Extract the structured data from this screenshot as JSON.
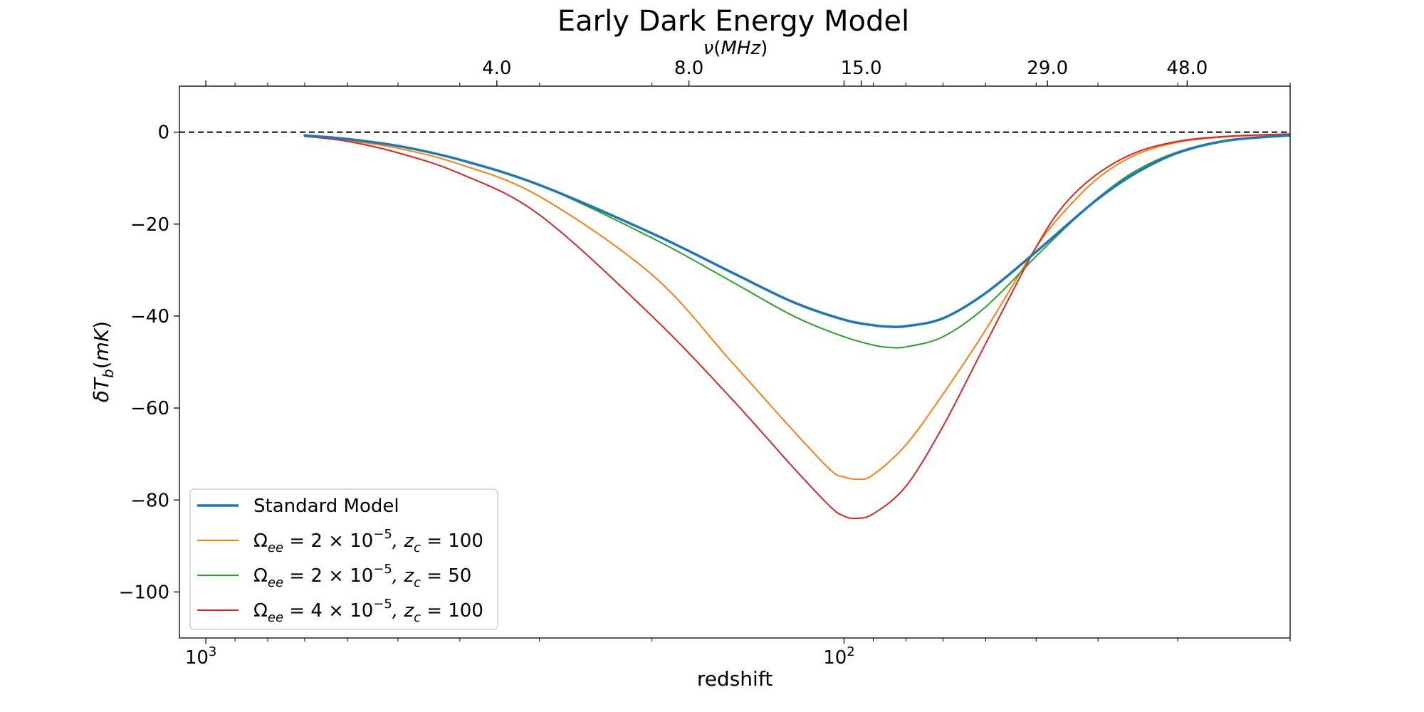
{
  "chart_data": {
    "type": "line",
    "title": "Early Dark Energy Model",
    "xlabel": "redshift",
    "ylabel": "δT_b(mK)",
    "x_scale": "log",
    "x_inverted": true,
    "xlim": [
      1100,
      20
    ],
    "ylim": [
      -110,
      10
    ],
    "y_ticks": [
      0,
      -20,
      -40,
      -60,
      -80,
      -100
    ],
    "y_tick_labels": [
      "0",
      "−20",
      "−40",
      "−60",
      "−80",
      "−100"
    ],
    "x_major_ticks": [
      {
        "value": 1000,
        "base": "10",
        "exp": "3"
      },
      {
        "value": 100,
        "base": "10",
        "exp": "2"
      }
    ],
    "top_axis": {
      "label": "ν(MHz)",
      "ticks": [
        {
          "z": 350,
          "label": "4.0"
        },
        {
          "z": 175,
          "label": "8.0"
        },
        {
          "z": 94,
          "label": "15.0"
        },
        {
          "z": 48,
          "label": "29.0"
        },
        {
          "z": 29,
          "label": "48.0"
        }
      ]
    },
    "reference_line": {
      "y": 0,
      "style": "dashed",
      "color": "#000000"
    },
    "grid": false,
    "legend_position": "lower-left",
    "series": [
      {
        "name": "Standard Model",
        "color": "#1f77b4",
        "stroke": 3.5,
        "points": [
          [
            700,
            -0.7
          ],
          [
            600,
            -1.5
          ],
          [
            500,
            -3
          ],
          [
            400,
            -6
          ],
          [
            300,
            -11.5
          ],
          [
            200,
            -22
          ],
          [
            150,
            -30.5
          ],
          [
            120,
            -37
          ],
          [
            100,
            -40.8
          ],
          [
            90,
            -42
          ],
          [
            85,
            -42.3
          ],
          [
            80,
            -42.2
          ],
          [
            70,
            -40.5
          ],
          [
            60,
            -35
          ],
          [
            50,
            -26
          ],
          [
            45,
            -20.5
          ],
          [
            40,
            -14.5
          ],
          [
            35,
            -9
          ],
          [
            30,
            -4.5
          ],
          [
            25,
            -1.8
          ],
          [
            20,
            -0.7
          ]
        ]
      },
      {
        "name": "Ω_ee = 2 × 10^−5, z_c = 100",
        "color": "#ff7f0e",
        "stroke": 2,
        "points": [
          [
            700,
            -0.8
          ],
          [
            600,
            -1.8
          ],
          [
            500,
            -3.5
          ],
          [
            400,
            -7
          ],
          [
            300,
            -14
          ],
          [
            200,
            -31
          ],
          [
            150,
            -50
          ],
          [
            120,
            -65
          ],
          [
            105,
            -73.5
          ],
          [
            100,
            -75
          ],
          [
            95,
            -75.5
          ],
          [
            90,
            -74.5
          ],
          [
            80,
            -68
          ],
          [
            70,
            -57
          ],
          [
            60,
            -43
          ],
          [
            50,
            -25
          ],
          [
            45,
            -17
          ],
          [
            40,
            -10
          ],
          [
            35,
            -5
          ],
          [
            30,
            -2.2
          ],
          [
            25,
            -1
          ],
          [
            20,
            -0.5
          ]
        ]
      },
      {
        "name": "Ω_ee = 2 × 10^−5, z_c = 50",
        "color": "#2ca02c",
        "stroke": 2,
        "points": [
          [
            700,
            -0.7
          ],
          [
            600,
            -1.5
          ],
          [
            500,
            -3
          ],
          [
            400,
            -6
          ],
          [
            300,
            -11.5
          ],
          [
            200,
            -23
          ],
          [
            150,
            -32.5
          ],
          [
            120,
            -40
          ],
          [
            100,
            -44.5
          ],
          [
            90,
            -46.3
          ],
          [
            85,
            -46.8
          ],
          [
            80,
            -46.7
          ],
          [
            70,
            -44.5
          ],
          [
            60,
            -38
          ],
          [
            50,
            -27
          ],
          [
            45,
            -20.8
          ],
          [
            40,
            -14.3
          ],
          [
            35,
            -8.5
          ],
          [
            30,
            -4.3
          ],
          [
            25,
            -1.7
          ],
          [
            20,
            -0.6
          ]
        ]
      },
      {
        "name": "Ω_ee = 4 × 10^−5, z_c = 100",
        "color": "#d62728",
        "stroke": 2,
        "points": [
          [
            700,
            -0.9
          ],
          [
            600,
            -2
          ],
          [
            500,
            -4.5
          ],
          [
            400,
            -9
          ],
          [
            300,
            -18
          ],
          [
            200,
            -40
          ],
          [
            150,
            -58
          ],
          [
            120,
            -73
          ],
          [
            105,
            -81.5
          ],
          [
            100,
            -83.5
          ],
          [
            96,
            -84
          ],
          [
            90,
            -83
          ],
          [
            80,
            -77
          ],
          [
            70,
            -64
          ],
          [
            60,
            -46
          ],
          [
            50,
            -25
          ],
          [
            45,
            -15.5
          ],
          [
            40,
            -9
          ],
          [
            35,
            -4.5
          ],
          [
            30,
            -2
          ],
          [
            25,
            -0.9
          ],
          [
            20,
            -0.4
          ]
        ]
      }
    ],
    "legend": [
      {
        "color": "#1f77b4",
        "stroke": 3.5,
        "text": "Standard Model"
      },
      {
        "color": "#ff7f0e",
        "stroke": 2,
        "pre": "Ω",
        "pre_sub": "ee",
        "mid": " = 2 × 10",
        "exp": "−5",
        "z": ", z",
        "z_sub": "c",
        "post": " = 100"
      },
      {
        "color": "#2ca02c",
        "stroke": 2,
        "pre": "Ω",
        "pre_sub": "ee",
        "mid": " = 2 × 10",
        "exp": "−5",
        "z": ", z",
        "z_sub": "c",
        "post": " = 50"
      },
      {
        "color": "#d62728",
        "stroke": 2,
        "pre": "Ω",
        "pre_sub": "ee",
        "mid": " = 4 × 10",
        "exp": "−5",
        "z": ", z",
        "z_sub": "c",
        "post": " = 100"
      }
    ]
  }
}
